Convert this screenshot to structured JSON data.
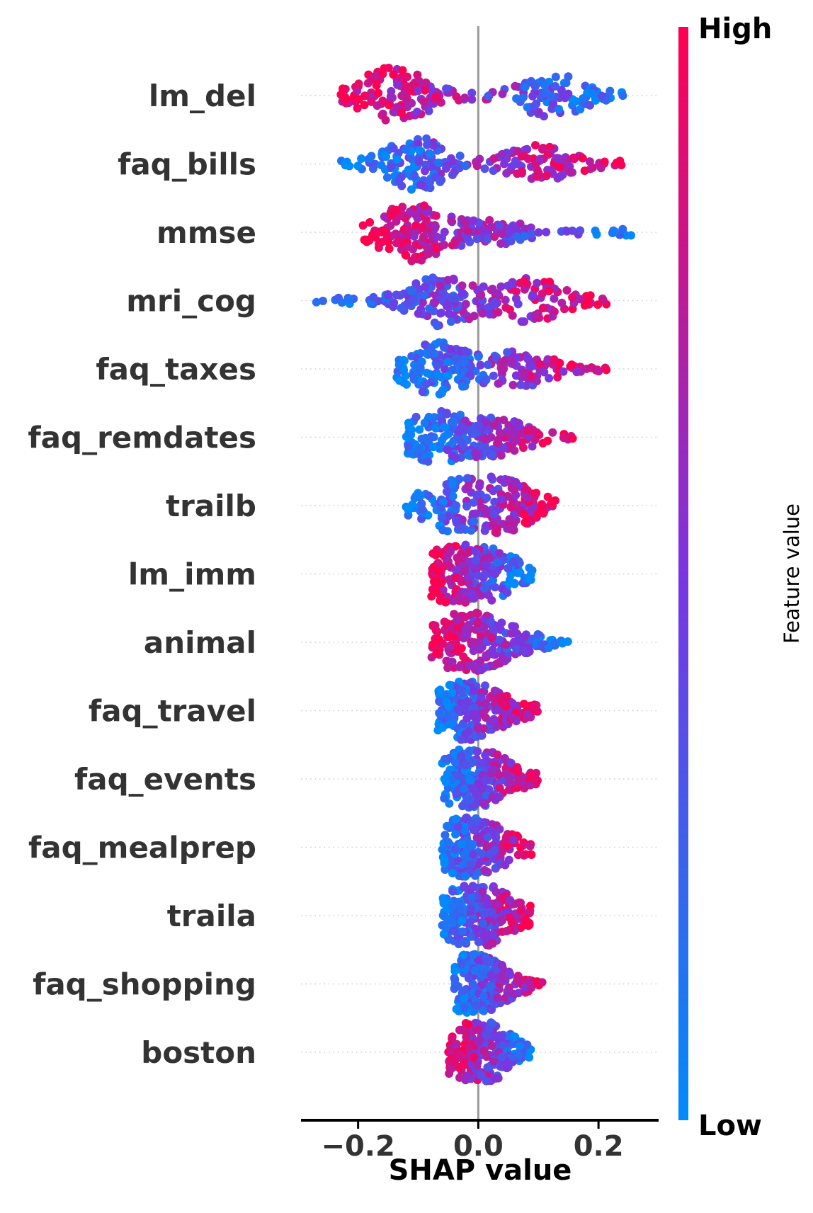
{
  "chart_data": {
    "type": "scatter",
    "subtype": "shap-beeswarm",
    "xlabel": "SHAP value",
    "xlim": [
      -0.295,
      0.3
    ],
    "xticks": [
      -0.2,
      0.0,
      0.2
    ],
    "xtick_labels": [
      "−0.2",
      "0.0",
      "0.2"
    ],
    "features": [
      {
        "name": "lm_del",
        "min": -0.23,
        "max": 0.26,
        "left_color": "high",
        "right_color": "low",
        "peaks": [
          [
            -0.14,
            0.42
          ],
          [
            0.12,
            0.3
          ]
        ]
      },
      {
        "name": "faq_bills",
        "min": -0.23,
        "max": 0.24,
        "left_color": "low",
        "right_color": "high",
        "peaks": [
          [
            -0.1,
            0.36
          ],
          [
            0.1,
            0.24
          ]
        ]
      },
      {
        "name": "mmse",
        "min": -0.2,
        "max": 0.27,
        "left_color": "high",
        "right_color": "low",
        "peaks": [
          [
            -0.11,
            0.4
          ],
          [
            0.02,
            0.15
          ]
        ]
      },
      {
        "name": "mri_cog",
        "min": -0.27,
        "max": 0.22,
        "left_color": "low",
        "right_color": "high",
        "peaks": [
          [
            -0.06,
            0.34
          ],
          [
            0.09,
            0.3
          ]
        ]
      },
      {
        "name": "faq_taxes",
        "min": -0.14,
        "max": 0.22,
        "left_color": "low",
        "right_color": "high",
        "peaks": [
          [
            -0.07,
            0.36
          ],
          [
            0.07,
            0.22
          ]
        ]
      },
      {
        "name": "faq_remdates",
        "min": -0.12,
        "max": 0.16,
        "left_color": "low",
        "right_color": "high",
        "peaks": [
          [
            -0.07,
            0.34
          ],
          [
            0.04,
            0.22
          ]
        ]
      },
      {
        "name": "trailb",
        "min": -0.12,
        "max": 0.13,
        "left_color": "low",
        "right_color": "high",
        "peaks": [
          [
            -0.05,
            0.3
          ],
          [
            0.04,
            0.34
          ]
        ]
      },
      {
        "name": "lm_imm",
        "min": -0.08,
        "max": 0.09,
        "left_color": "high",
        "right_color": "low",
        "peaks": [
          [
            -0.05,
            0.32
          ],
          [
            0.02,
            0.28
          ]
        ]
      },
      {
        "name": "animal",
        "min": -0.08,
        "max": 0.15,
        "left_color": "high",
        "right_color": "low",
        "peaks": [
          [
            -0.03,
            0.36
          ],
          [
            0.04,
            0.16
          ]
        ]
      },
      {
        "name": "faq_travel",
        "min": -0.07,
        "max": 0.1,
        "left_color": "low",
        "right_color": "high",
        "peaks": [
          [
            -0.03,
            0.36
          ],
          [
            0.03,
            0.1
          ]
        ]
      },
      {
        "name": "faq_events",
        "min": -0.06,
        "max": 0.1,
        "left_color": "low",
        "right_color": "high",
        "peaks": [
          [
            -0.02,
            0.36
          ],
          [
            0.03,
            0.14
          ]
        ]
      },
      {
        "name": "faq_mealprep",
        "min": -0.06,
        "max": 0.09,
        "left_color": "low",
        "right_color": "high",
        "peaks": [
          [
            -0.02,
            0.38
          ],
          [
            0.03,
            0.1
          ]
        ]
      },
      {
        "name": "traila",
        "min": -0.06,
        "max": 0.09,
        "left_color": "low",
        "right_color": "high",
        "peaks": [
          [
            -0.02,
            0.36
          ],
          [
            0.03,
            0.18
          ]
        ]
      },
      {
        "name": "faq_shopping",
        "min": -0.04,
        "max": 0.11,
        "left_color": "low",
        "right_color": "high",
        "peaks": [
          [
            -0.015,
            0.38
          ],
          [
            0.03,
            0.07
          ]
        ]
      },
      {
        "name": "boston",
        "min": -0.05,
        "max": 0.09,
        "left_color": "high",
        "right_color": "low",
        "peaks": [
          [
            -0.01,
            0.36
          ],
          [
            0.03,
            0.12
          ]
        ]
      }
    ],
    "colorbar": {
      "title": "Feature value",
      "high_label": "High",
      "low_label": "Low",
      "high_color": "#ff0051",
      "mid_color": "#7b35e0",
      "low_color": "#008bfb"
    },
    "zero_line_color": "#999999"
  }
}
